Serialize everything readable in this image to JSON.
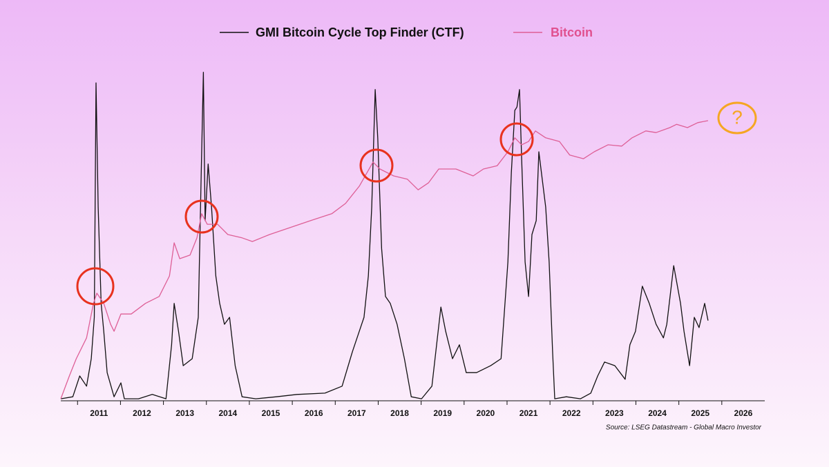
{
  "chart_data": {
    "type": "line",
    "series": [
      {
        "name": "GMI Bitcoin Cycle Top Finder (CTF)",
        "color": "#111111",
        "x": [
          2010.61,
          2010.89,
          2011.05,
          2011.21,
          2011.32,
          2011.39,
          2011.43,
          2011.48,
          2011.55,
          2011.61,
          2011.69,
          2011.85,
          2012.01,
          2012.09,
          2012.42,
          2012.74,
          2013.06,
          2013.19,
          2013.25,
          2013.35,
          2013.46,
          2013.67,
          2013.81,
          2013.88,
          2013.93,
          2013.97,
          2014.04,
          2014.12,
          2014.22,
          2014.31,
          2014.42,
          2014.54,
          2014.67,
          2014.83,
          2015.15,
          2015.63,
          2016.11,
          2016.76,
          2017.16,
          2017.4,
          2017.56,
          2017.67,
          2017.77,
          2017.85,
          2017.93,
          2017.99,
          2018.08,
          2018.17,
          2018.28,
          2018.44,
          2018.61,
          2018.77,
          2019.01,
          2019.25,
          2019.46,
          2019.57,
          2019.73,
          2019.89,
          2020.05,
          2020.29,
          2020.62,
          2020.86,
          2021.02,
          2021.1,
          2021.18,
          2021.23,
          2021.29,
          2021.34,
          2021.42,
          2021.5,
          2021.58,
          2021.68,
          2021.74,
          2021.82,
          2021.9,
          2021.98,
          2022.06,
          2022.11,
          2022.38,
          2022.71,
          2022.95,
          2023.11,
          2023.27,
          2023.51,
          2023.75,
          2023.86,
          2023.99,
          2024.15,
          2024.31,
          2024.47,
          2024.64,
          2024.72,
          2024.88,
          2025.04,
          2025.12,
          2025.25,
          2025.36,
          2025.47,
          2025.6,
          2025.68
        ],
        "values": [
          0.4,
          1,
          7.3,
          4.2,
          12.5,
          25,
          95.8,
          58.3,
          29.2,
          20.8,
          8.3,
          1,
          5.2,
          0.4,
          0.4,
          1.7,
          0.4,
          16.7,
          29.2,
          20.8,
          10.4,
          12.5,
          25,
          68.8,
          99,
          54.2,
          71.3,
          58.3,
          37.5,
          29.2,
          22.9,
          25,
          10.4,
          1,
          0.4,
          1,
          1.7,
          2.1,
          4.2,
          14.6,
          20.8,
          25,
          37.5,
          58.3,
          93.8,
          79.2,
          45.8,
          31.3,
          29.2,
          22.9,
          12.5,
          1,
          0.4,
          4.2,
          28.1,
          20.8,
          12.5,
          16.7,
          8.3,
          8.3,
          10.4,
          12.5,
          41.7,
          68.8,
          87.5,
          88.5,
          93.8,
          72.9,
          41.7,
          31.3,
          50,
          54.2,
          75,
          66.7,
          58.3,
          41.7,
          14.6,
          0.4,
          1,
          0.4,
          2.1,
          7.3,
          11.5,
          10.4,
          6.3,
          16.7,
          20.8,
          34.4,
          29.2,
          22.9,
          18.8,
          22.9,
          40.6,
          29.2,
          20.8,
          10.4,
          25,
          21.9,
          29.2,
          24
        ]
      },
      {
        "name": "Bitcoin",
        "color": "#de5f96",
        "x": [
          2010.61,
          2010.81,
          2010.97,
          2011.21,
          2011.37,
          2011.45,
          2011.61,
          2011.77,
          2011.85,
          2012.01,
          2012.25,
          2012.58,
          2012.9,
          2013.14,
          2013.25,
          2013.38,
          2013.62,
          2013.78,
          2013.89,
          2014.02,
          2014.26,
          2014.5,
          2014.83,
          2015.07,
          2015.47,
          2015.95,
          2016.43,
          2016.92,
          2017.24,
          2017.56,
          2017.88,
          2018.04,
          2018.36,
          2018.68,
          2018.93,
          2019.17,
          2019.41,
          2019.81,
          2020.21,
          2020.45,
          2020.77,
          2021.02,
          2021.18,
          2021.34,
          2021.5,
          2021.66,
          2021.9,
          2022.22,
          2022.46,
          2022.78,
          2023.03,
          2023.35,
          2023.67,
          2023.91,
          2024.23,
          2024.47,
          2024.79,
          2024.95,
          2025.2,
          2025.44,
          2025.68
        ],
        "values": [
          0.4,
          7.3,
          12.5,
          18.8,
          29.2,
          32.3,
          29.2,
          22.9,
          20.8,
          26,
          26,
          29.2,
          31.3,
          37.5,
          47.5,
          42.7,
          43.8,
          49,
          56.3,
          53.1,
          53.1,
          50,
          49,
          47.9,
          50,
          52.1,
          54.2,
          56.3,
          59.4,
          64.6,
          71.9,
          69.8,
          67.7,
          66.7,
          63.5,
          65.6,
          69.8,
          69.8,
          67.7,
          69.8,
          70.8,
          75,
          79.2,
          77.1,
          78.1,
          81.3,
          79.2,
          78.1,
          74,
          72.9,
          75,
          77.1,
          76.7,
          79.2,
          81.3,
          80.8,
          82.3,
          83.3,
          82.3,
          83.8,
          84.4
        ]
      }
    ],
    "xlim": [
      2010.61,
      2027
    ],
    "xticks": [
      2011,
      2012,
      2013,
      2014,
      2015,
      2016,
      2017,
      2018,
      2019,
      2020,
      2021,
      2022,
      2023,
      2024,
      2025,
      2026
    ],
    "ylim": [
      0,
      100
    ],
    "annotations": [
      "?"
    ],
    "source": "Source: LSEG Datastream - Global Macro Investor"
  }
}
